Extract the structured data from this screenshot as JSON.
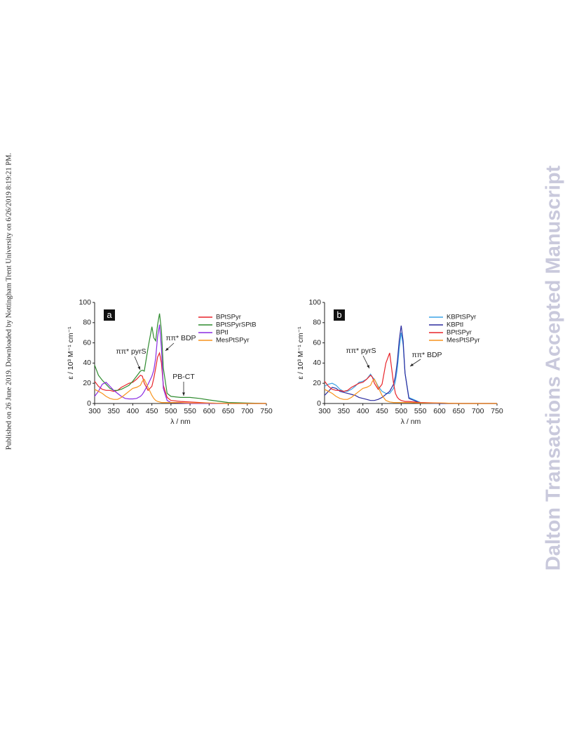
{
  "side_note": "Published on 26 June 2019. Downloaded by Nottingham Trent University on 6/26/2019 8:19:21 PM.",
  "watermark": "Dalton Transactions Accepted Manuscript",
  "chart_data": [
    {
      "type": "line",
      "label": "a",
      "xlabel": "λ / nm",
      "ylabel": "ε / 10³ M⁻¹ cm⁻¹",
      "xlim": [
        300,
        750
      ],
      "ylim": [
        0,
        100
      ],
      "xticks": [
        300,
        350,
        400,
        450,
        500,
        550,
        600,
        650,
        700,
        750
      ],
      "yticks": [
        0,
        20,
        40,
        60,
        80,
        100
      ],
      "legend": "upper right",
      "annotations": [
        "ππ* pyrS",
        "ππ* BDP",
        "PB-CT"
      ],
      "x": [
        300,
        310,
        320,
        330,
        340,
        350,
        360,
        370,
        380,
        390,
        400,
        410,
        420,
        425,
        430,
        440,
        450,
        455,
        460,
        465,
        470,
        475,
        480,
        490,
        500,
        525,
        550,
        575,
        600,
        650,
        700,
        750
      ],
      "series": [
        {
          "name": "BPtSPyr",
          "color": "#e8242a",
          "values": [
            22,
            17,
            14,
            13,
            13,
            12,
            13,
            16,
            18,
            20,
            21,
            24,
            28,
            27,
            20,
            13,
            17,
            25,
            35,
            46,
            50,
            40,
            18,
            6,
            3,
            2,
            1.5,
            1,
            0.5,
            0,
            0,
            0
          ]
        },
        {
          "name": "BPtSPyrSPtB",
          "color": "#2e8b2e",
          "values": [
            38,
            28,
            23,
            19,
            15,
            13,
            13,
            14,
            16,
            18,
            22,
            27,
            32,
            33,
            32,
            55,
            76,
            65,
            62,
            78,
            89,
            72,
            35,
            10,
            7,
            6,
            6,
            5,
            3.5,
            1,
            0.5,
            0
          ]
        },
        {
          "name": "BPtI",
          "color": "#8a2be2",
          "values": [
            7,
            12,
            19,
            21,
            17,
            13,
            10,
            7,
            5,
            4.5,
            4.5,
            5,
            7,
            9,
            12,
            19,
            27,
            33,
            45,
            66,
            78,
            55,
            15,
            3,
            1,
            0.5,
            0,
            0,
            0,
            0,
            0,
            0
          ]
        },
        {
          "name": "MesPtSPyr",
          "color": "#f7941d",
          "values": [
            14,
            12,
            10,
            7,
            5,
            4,
            4,
            6,
            9,
            12,
            15,
            16,
            18,
            22,
            24,
            16,
            8,
            5,
            3,
            2,
            1.5,
            1,
            1,
            1,
            1,
            1,
            0.5,
            0.5,
            0.5,
            0,
            0,
            0
          ]
        }
      ]
    },
    {
      "type": "line",
      "label": "b",
      "xlabel": "λ / nm",
      "ylabel": "ε / 10³ M⁻¹ cm⁻¹",
      "xlim": [
        300,
        750
      ],
      "ylim": [
        0,
        100
      ],
      "xticks": [
        300,
        350,
        400,
        450,
        500,
        550,
        600,
        650,
        700,
        750
      ],
      "yticks": [
        0,
        20,
        40,
        60,
        80,
        100
      ],
      "legend": "upper right",
      "annotations": [
        "ππ* pyrS",
        "ππ* BDP"
      ],
      "x": [
        300,
        310,
        320,
        330,
        340,
        350,
        360,
        370,
        380,
        390,
        400,
        410,
        420,
        425,
        430,
        440,
        450,
        460,
        470,
        480,
        485,
        490,
        495,
        500,
        505,
        510,
        520,
        550,
        600,
        650,
        700,
        750
      ],
      "series": [
        {
          "name": "KBPtSPyr",
          "color": "#3ba3e6",
          "values": [
            17,
            19,
            20,
            18,
            14,
            12,
            12,
            14,
            17,
            21,
            22,
            24,
            29,
            26,
            24,
            17,
            12,
            10,
            10,
            15,
            22,
            35,
            55,
            70,
            58,
            30,
            6,
            1,
            0,
            0,
            0,
            0
          ]
        },
        {
          "name": "KBPtI",
          "color": "#2b2b9e",
          "values": [
            8,
            12,
            16,
            15,
            12,
            11,
            10,
            9,
            8,
            6,
            5,
            4,
            3,
            3,
            3,
            4,
            6,
            9,
            12,
            19,
            27,
            42,
            63,
            77,
            62,
            30,
            5,
            0.5,
            0,
            0,
            0,
            0
          ]
        },
        {
          "name": "BPtSPyr",
          "color": "#e8242a",
          "values": [
            22,
            17,
            14,
            13,
            13,
            12,
            13,
            16,
            18,
            20,
            21,
            24,
            28,
            26,
            20,
            14,
            19,
            40,
            50,
            20,
            10,
            6,
            4,
            3,
            2.5,
            2,
            2,
            1,
            0.5,
            0,
            0,
            0
          ]
        },
        {
          "name": "MesPtSPyr",
          "color": "#f7941d",
          "values": [
            14,
            12,
            10,
            7,
            5,
            4,
            4,
            6,
            9,
            12,
            15,
            16,
            18,
            22,
            24,
            16,
            8,
            3,
            1.5,
            1,
            1,
            1,
            1,
            1,
            1,
            1,
            1,
            0.5,
            0.5,
            0,
            0,
            0
          ]
        }
      ]
    }
  ]
}
